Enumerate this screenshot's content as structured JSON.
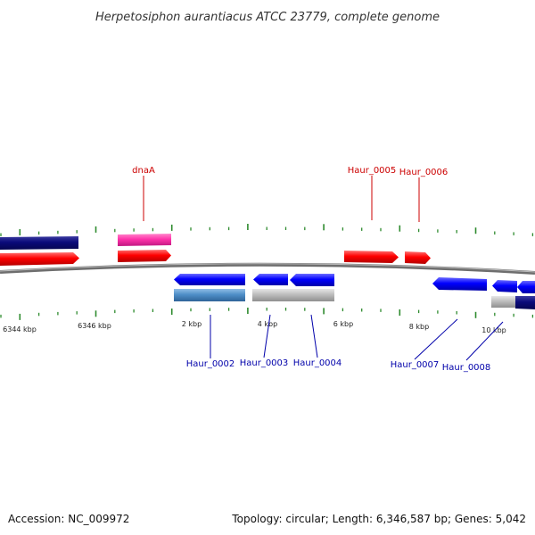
{
  "title": "Herpetosiphon aurantiacus ATCC 23779, complete genome",
  "footer": {
    "accession": "Accession: NC_009972",
    "summary": "Topology: circular; Length: 6,346,587 bp; Genes: 5,042"
  },
  "colors": {
    "backbone": "#777777",
    "tick": "#2e8b2e",
    "forward_gene": "#ff0000",
    "reverse_gene": "#0000ff",
    "navy_gene": "#0a0a7a",
    "pink_gene": "#ff33aa",
    "steel_gene": "#4f8fc8",
    "gray_gene": "#bdbdbd",
    "label_forward": "#cc0000",
    "label_reverse": "#0000aa"
  },
  "ticks": {
    "labels": [
      "6344 kbp",
      "6346 kbp",
      "2 kbp",
      "4 kbp",
      "6 kbp",
      "8 kbp",
      "10 kbp"
    ]
  },
  "gene_labels": {
    "dnaA": "dnaA",
    "haur_0005": "Haur_0005",
    "haur_0006": "Haur_0006",
    "haur_0002": "Haur_0002",
    "haur_0003": "Haur_0003",
    "haur_0004": "Haur_0004",
    "haur_0007": "Haur_0007",
    "haur_0008": "Haur_0008"
  }
}
